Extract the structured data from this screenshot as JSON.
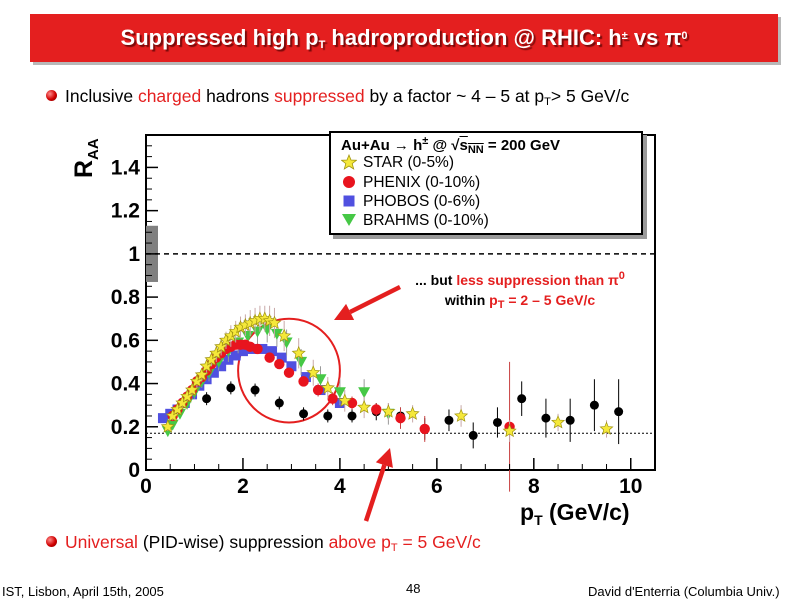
{
  "slide": {
    "title_main": "Suppressed high p",
    "title_sub": "T",
    "title_rest": " hadroproduction @ RHIC: h",
    "title_sup": "±",
    "title_vs": " vs π",
    "title_pi_sup": "0",
    "bullet1": {
      "t1": "Inclusive ",
      "t2": "charged",
      "t3": " hadrons ",
      "t4": "suppressed",
      "t5": " by a factor ~ 4 – 5 at p",
      "t6": "T",
      "t7": "> 5 GeV/c"
    },
    "bullet2": {
      "t1": "Universal",
      "t2": " (PID-wise) suppression ",
      "t3": "above p",
      "t4": "T",
      "t5": " = 5 GeV/c"
    },
    "annotation": {
      "l1a": "... but ",
      "l1b": "less suppression than π",
      "l1c": "0",
      "l2a": "within ",
      "l2b": "p",
      "l2c": "T",
      "l2d": " = 2 – 5 GeV/c"
    },
    "footer_left": "IST, Lisbon, April 15th, 2005",
    "footer_page": "48",
    "footer_right": "David d'Enterria (Columbia Univ.)",
    "legend_header": "Au+Au → h",
    "legend_header_sup": "±",
    "legend_header_at": " @ √",
    "legend_header_s": "s",
    "legend_header_nn": "NN",
    "legend_header_rest": " = 200 GeV"
  },
  "colors": {
    "title_bg": "#e41f1f",
    "star": "#f5e83a",
    "phenix": "#e8141e",
    "phobos": "#5050e0",
    "brahms": "#46c846",
    "pi0": "#000000",
    "arrow": "#e41f1f"
  },
  "chart_data": {
    "type": "scatter",
    "xlim": [
      0,
      10.5
    ],
    "ylim": [
      0,
      1.55
    ],
    "xticks": [
      0,
      2,
      4,
      6,
      8,
      10
    ],
    "yticks": [
      0,
      0.2,
      0.4,
      0.6,
      0.8,
      1,
      1.2,
      1.4
    ],
    "ytick_labels": [
      "0",
      "0.2",
      "0.4",
      "0.6",
      "0.8",
      "1",
      "1.2",
      "1.4"
    ],
    "xlabel": "p",
    "xlabel_sub": "T",
    "xlabel_unit": " (GeV/c)",
    "ylabel": "R",
    "ylabel_sub": "AA",
    "reference_lines": [
      1.0,
      0.17
    ],
    "norm_uncertainty": [
      0.87,
      1.13
    ],
    "series": [
      {
        "name": "STAR (0-5%)",
        "marker": "star",
        "x": [
          0.45,
          0.55,
          0.65,
          0.75,
          0.85,
          0.95,
          1.05,
          1.15,
          1.25,
          1.35,
          1.45,
          1.55,
          1.65,
          1.75,
          1.85,
          1.95,
          2.05,
          2.15,
          2.25,
          2.35,
          2.45,
          2.55,
          2.65,
          2.85,
          3.15,
          3.45,
          3.75,
          4.1,
          4.5,
          5.0,
          5.5,
          6.5,
          7.5,
          8.5,
          9.5
        ],
        "y": [
          0.2,
          0.25,
          0.28,
          0.31,
          0.34,
          0.37,
          0.41,
          0.44,
          0.48,
          0.51,
          0.54,
          0.57,
          0.6,
          0.62,
          0.64,
          0.66,
          0.67,
          0.68,
          0.69,
          0.7,
          0.7,
          0.69,
          0.68,
          0.62,
          0.54,
          0.45,
          0.38,
          0.32,
          0.29,
          0.27,
          0.26,
          0.25,
          0.18,
          0.22,
          0.19
        ],
        "err": [
          0.02,
          0.02,
          0.02,
          0.02,
          0.02,
          0.02,
          0.03,
          0.03,
          0.03,
          0.03,
          0.04,
          0.04,
          0.04,
          0.05,
          0.05,
          0.05,
          0.05,
          0.06,
          0.06,
          0.06,
          0.06,
          0.07,
          0.07,
          0.07,
          0.07,
          0.06,
          0.05,
          0.05,
          0.05,
          0.04,
          0.04,
          0.05,
          0.05,
          0.04,
          0.04
        ]
      },
      {
        "name": "PHENIX (0-10%)",
        "marker": "circle",
        "x": [
          0.55,
          0.65,
          0.75,
          0.85,
          0.95,
          1.05,
          1.15,
          1.25,
          1.35,
          1.45,
          1.55,
          1.65,
          1.75,
          1.85,
          1.95,
          2.05,
          2.15,
          2.3,
          2.55,
          2.75,
          2.95,
          3.25,
          3.55,
          3.85,
          4.25,
          4.75,
          5.25,
          5.75,
          7.5
        ],
        "y": [
          0.25,
          0.28,
          0.31,
          0.34,
          0.37,
          0.41,
          0.43,
          0.46,
          0.49,
          0.52,
          0.54,
          0.56,
          0.57,
          0.58,
          0.58,
          0.58,
          0.57,
          0.56,
          0.52,
          0.49,
          0.45,
          0.41,
          0.37,
          0.33,
          0.31,
          0.28,
          0.24,
          0.19,
          0.2
        ],
        "err": [
          0.02,
          0.02,
          0.02,
          0.02,
          0.02,
          0.02,
          0.02,
          0.02,
          0.02,
          0.02,
          0.02,
          0.02,
          0.02,
          0.02,
          0.02,
          0.02,
          0.02,
          0.02,
          0.02,
          0.02,
          0.02,
          0.02,
          0.03,
          0.03,
          0.03,
          0.03,
          0.05,
          0.06,
          0.3
        ]
      },
      {
        "name": "PHOBOS (0-6%)",
        "marker": "square",
        "x": [
          0.35,
          0.5,
          0.65,
          0.8,
          0.95,
          1.1,
          1.25,
          1.4,
          1.55,
          1.7,
          1.85,
          2.0,
          2.2,
          2.4,
          2.6,
          2.8,
          3.0,
          3.3,
          3.6,
          4.0
        ],
        "y": [
          0.24,
          0.26,
          0.28,
          0.31,
          0.35,
          0.39,
          0.42,
          0.45,
          0.48,
          0.51,
          0.53,
          0.55,
          0.56,
          0.56,
          0.55,
          0.52,
          0.48,
          0.43,
          0.37,
          0.31
        ],
        "err": [
          0.02,
          0.02,
          0.02,
          0.02,
          0.02,
          0.02,
          0.02,
          0.02,
          0.02,
          0.02,
          0.02,
          0.02,
          0.02,
          0.02,
          0.02,
          0.02,
          0.02,
          0.02,
          0.02,
          0.02
        ]
      },
      {
        "name": "BRAHMS (0-10%)",
        "marker": "triangle",
        "x": [
          0.45,
          0.55,
          0.7,
          0.85,
          1.0,
          1.15,
          1.3,
          1.5,
          1.7,
          1.9,
          2.1,
          2.3,
          2.5,
          2.7,
          2.9,
          3.2,
          3.6,
          4.0,
          4.5,
          5.0
        ],
        "y": [
          0.18,
          0.21,
          0.26,
          0.31,
          0.36,
          0.41,
          0.45,
          0.5,
          0.55,
          0.59,
          0.62,
          0.64,
          0.65,
          0.63,
          0.59,
          0.5,
          0.42,
          0.36,
          0.36,
          0.26
        ],
        "err": [
          0.02,
          0.02,
          0.02,
          0.03,
          0.03,
          0.03,
          0.04,
          0.04,
          0.05,
          0.05,
          0.05,
          0.06,
          0.06,
          0.06,
          0.06,
          0.06,
          0.06,
          0.06,
          0.06,
          0.05
        ]
      },
      {
        "name": "",
        "marker": "circle-black",
        "x": [
          1.25,
          1.75,
          2.25,
          2.75,
          3.25,
          3.75,
          4.25,
          4.75,
          5.25,
          5.75,
          6.25,
          6.75,
          7.25,
          7.75,
          8.25,
          8.75,
          9.25,
          9.75
        ],
        "y": [
          0.33,
          0.38,
          0.37,
          0.31,
          0.26,
          0.25,
          0.25,
          0.27,
          0.25,
          0.19,
          0.23,
          0.16,
          0.22,
          0.33,
          0.24,
          0.23,
          0.3,
          0.27
        ],
        "err": [
          0.03,
          0.03,
          0.03,
          0.03,
          0.03,
          0.03,
          0.03,
          0.04,
          0.04,
          0.05,
          0.05,
          0.06,
          0.07,
          0.08,
          0.09,
          0.1,
          0.12,
          0.15
        ]
      }
    ]
  }
}
